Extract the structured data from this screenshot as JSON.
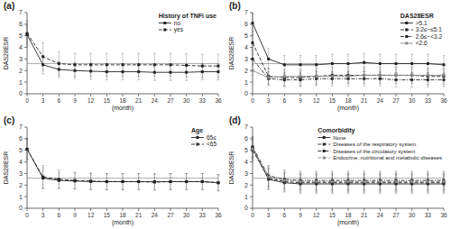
{
  "chart_data": [
    {
      "type": "line",
      "title": "(a)",
      "x_label": "(month)",
      "y_label": "DAS28ESR",
      "x": [
        0,
        3,
        6,
        9,
        12,
        15,
        18,
        21,
        24,
        27,
        30,
        33,
        36
      ],
      "xlim": [
        0,
        36
      ],
      "xticks": [
        0,
        3,
        6,
        9,
        12,
        15,
        18,
        21,
        24,
        27,
        30,
        33,
        36
      ],
      "ylim": [
        0,
        7
      ],
      "yticks": [
        0,
        1,
        2,
        3,
        4,
        5,
        6,
        7
      ],
      "hline": 2.6,
      "grid": false,
      "legend": "upper right",
      "legend_title": "History of TNFi use",
      "series": [
        {
          "name": "no",
          "color": "#222222",
          "line_style": "solid",
          "marker": "square",
          "values": [
            5.1,
            2.5,
            2.1,
            2.0,
            1.95,
            1.9,
            1.9,
            1.9,
            1.85,
            1.85,
            1.85,
            1.9,
            1.9
          ],
          "errors": [
            0.8,
            0.8,
            0.7,
            0.7,
            0.7,
            0.7,
            0.7,
            0.7,
            0.7,
            0.7,
            0.7,
            0.7,
            0.7
          ]
        },
        {
          "name": "yes",
          "color": "#222222",
          "line_style": "dashed",
          "marker": "square",
          "values": [
            5.2,
            3.2,
            2.6,
            2.5,
            2.5,
            2.5,
            2.5,
            2.5,
            2.5,
            2.5,
            2.45,
            2.4,
            2.4
          ],
          "errors": [
            1.1,
            1.2,
            1.0,
            1.0,
            1.0,
            1.0,
            1.0,
            1.0,
            1.0,
            1.0,
            1.0,
            1.0,
            1.0
          ]
        }
      ]
    },
    {
      "type": "line",
      "title": "(b)",
      "x_label": "(month)",
      "y_label": "DAS28ESR",
      "x": [
        0,
        3,
        6,
        9,
        12,
        15,
        18,
        21,
        24,
        27,
        30,
        33,
        36
      ],
      "xlim": [
        0,
        36
      ],
      "xticks": [
        0,
        3,
        6,
        9,
        12,
        15,
        18,
        21,
        24,
        27,
        30,
        33,
        36
      ],
      "ylim": [
        0,
        7
      ],
      "yticks": [
        0,
        1,
        2,
        3,
        4,
        5,
        6,
        7
      ],
      "hline": 2.6,
      "grid": false,
      "legend": "upper right",
      "legend_title": "DAS28ESR",
      "series": [
        {
          "name": ">5.1",
          "color": "#222222",
          "line_style": "solid",
          "marker": "square",
          "values": [
            6.1,
            3.0,
            2.5,
            2.5,
            2.5,
            2.6,
            2.6,
            2.7,
            2.6,
            2.6,
            2.6,
            2.6,
            2.5
          ],
          "errors": [
            0.8,
            0.9,
            0.8,
            0.8,
            0.8,
            0.8,
            0.8,
            0.8,
            0.8,
            0.8,
            0.8,
            0.8,
            0.8
          ]
        },
        {
          "name": "3.2≤~≤5.1",
          "color": "#222222",
          "line_style": "dashed",
          "marker": "square",
          "values": [
            4.4,
            1.5,
            1.4,
            1.4,
            1.5,
            1.6,
            1.6,
            1.6,
            1.6,
            1.6,
            1.6,
            1.5,
            1.5
          ],
          "errors": [
            0.7,
            0.7,
            0.7,
            0.7,
            0.7,
            0.7,
            0.7,
            0.7,
            0.7,
            0.7,
            0.7,
            0.7,
            0.7
          ]
        },
        {
          "name": "2.6≤~<3.2",
          "color": "#222222",
          "line_style": "dashdot",
          "marker": "square",
          "values": [
            3.0,
            1.3,
            1.2,
            1.2,
            1.3,
            1.3,
            1.3,
            1.3,
            1.3,
            1.2,
            1.2,
            1.2,
            1.2
          ],
          "errors": [
            0.5,
            0.6,
            0.6,
            0.6,
            0.6,
            0.6,
            0.6,
            0.6,
            0.6,
            0.6,
            0.6,
            0.6,
            0.6
          ]
        },
        {
          "name": "<2.6",
          "color": "#888888",
          "line_style": "solid",
          "marker": "square",
          "values": [
            2.0,
            1.4,
            1.5,
            1.5,
            1.5,
            1.5,
            1.5,
            1.6,
            1.6,
            1.6,
            1.6,
            1.6,
            1.6
          ],
          "errors": [
            0.4,
            0.5,
            0.5,
            0.5,
            0.5,
            0.5,
            0.5,
            0.5,
            0.5,
            0.5,
            0.5,
            0.5,
            0.5
          ]
        }
      ]
    },
    {
      "type": "line",
      "title": "(c)",
      "x_label": "(month)",
      "y_label": "DAS28ESR",
      "x": [
        0,
        3,
        6,
        9,
        12,
        15,
        18,
        21,
        24,
        27,
        30,
        33,
        36
      ],
      "xlim": [
        0,
        36
      ],
      "xticks": [
        0,
        3,
        6,
        9,
        12,
        15,
        18,
        21,
        24,
        27,
        30,
        33,
        36
      ],
      "ylim": [
        0,
        7
      ],
      "yticks": [
        0,
        1,
        2,
        3,
        4,
        5,
        6,
        7
      ],
      "hline": 2.6,
      "grid": false,
      "legend": "upper right",
      "legend_title": "Age",
      "series": [
        {
          "name": "65≤",
          "color": "#222222",
          "line_style": "solid",
          "marker": "square",
          "values": [
            5.1,
            2.6,
            2.4,
            2.35,
            2.3,
            2.3,
            2.3,
            2.3,
            2.3,
            2.3,
            2.3,
            2.3,
            2.2
          ],
          "errors": [
            0.9,
            0.9,
            0.7,
            0.7,
            0.7,
            0.7,
            0.7,
            0.7,
            0.7,
            0.7,
            0.7,
            0.7,
            0.7
          ]
        },
        {
          "name": "<65",
          "color": "#222222",
          "line_style": "dashed",
          "marker": "square",
          "values": [
            5.1,
            2.7,
            2.5,
            2.4,
            2.35,
            2.3,
            2.3,
            2.3,
            2.25,
            2.3,
            2.3,
            2.3,
            2.2
          ],
          "errors": [
            0.9,
            1.0,
            0.8,
            0.7,
            0.7,
            0.7,
            0.7,
            0.7,
            0.7,
            0.7,
            0.7,
            0.7,
            0.7
          ]
        }
      ]
    },
    {
      "type": "line",
      "title": "(d)",
      "x_label": "(month)",
      "y_label": "DAS28ESR",
      "x": [
        0,
        3,
        6,
        9,
        12,
        15,
        18,
        21,
        24,
        27,
        30,
        33,
        36
      ],
      "xlim": [
        0,
        36
      ],
      "xticks": [
        0,
        3,
        6,
        9,
        12,
        15,
        18,
        21,
        24,
        27,
        30,
        33,
        36
      ],
      "ylim": [
        0,
        7
      ],
      "yticks": [
        0,
        1,
        2,
        3,
        4,
        5,
        6,
        7
      ],
      "hline": 2.6,
      "grid": false,
      "legend": "upper right",
      "legend_title": "Comorbidity",
      "series": [
        {
          "name": "None",
          "color": "#222222",
          "line_style": "solid",
          "marker": "square",
          "values": [
            5.2,
            2.5,
            2.2,
            2.1,
            2.1,
            2.1,
            2.1,
            2.1,
            2.1,
            2.1,
            2.1,
            2.1,
            2.1
          ],
          "errors": [
            0.9,
            0.9,
            0.8,
            0.8,
            0.8,
            0.8,
            0.8,
            0.8,
            0.8,
            0.8,
            0.8,
            0.8,
            0.8
          ]
        },
        {
          "name": "Diseases of the respiratory system",
          "color": "#222222",
          "line_style": "dashed",
          "marker": "square",
          "values": [
            5.0,
            2.6,
            2.3,
            2.2,
            2.2,
            2.2,
            2.2,
            2.2,
            2.2,
            2.2,
            2.2,
            2.2,
            2.2
          ],
          "errors": [
            0.9,
            0.9,
            0.8,
            0.8,
            0.8,
            0.8,
            0.8,
            0.8,
            0.8,
            0.8,
            0.8,
            0.8,
            0.8
          ]
        },
        {
          "name": "Diseases of the circulatory system",
          "color": "#222222",
          "line_style": "dashdot",
          "marker": "square",
          "values": [
            5.3,
            2.8,
            2.5,
            2.4,
            2.4,
            2.4,
            2.4,
            2.4,
            2.4,
            2.4,
            2.4,
            2.4,
            2.4
          ],
          "errors": [
            0.9,
            0.9,
            0.8,
            0.8,
            0.8,
            0.8,
            0.8,
            0.8,
            0.8,
            0.8,
            0.8,
            0.8,
            0.8
          ]
        },
        {
          "name": "Endocrine, nutritional and metabolic diseases",
          "color": "#888888",
          "line_style": "dashed",
          "marker": "square",
          "values": [
            5.1,
            2.7,
            2.4,
            2.3,
            2.3,
            2.3,
            2.3,
            2.3,
            2.3,
            2.3,
            2.3,
            2.3,
            2.3
          ],
          "errors": [
            0.9,
            0.9,
            0.8,
            0.8,
            0.8,
            0.8,
            0.8,
            0.8,
            0.8,
            0.8,
            0.8,
            0.8,
            0.8
          ]
        }
      ]
    }
  ]
}
